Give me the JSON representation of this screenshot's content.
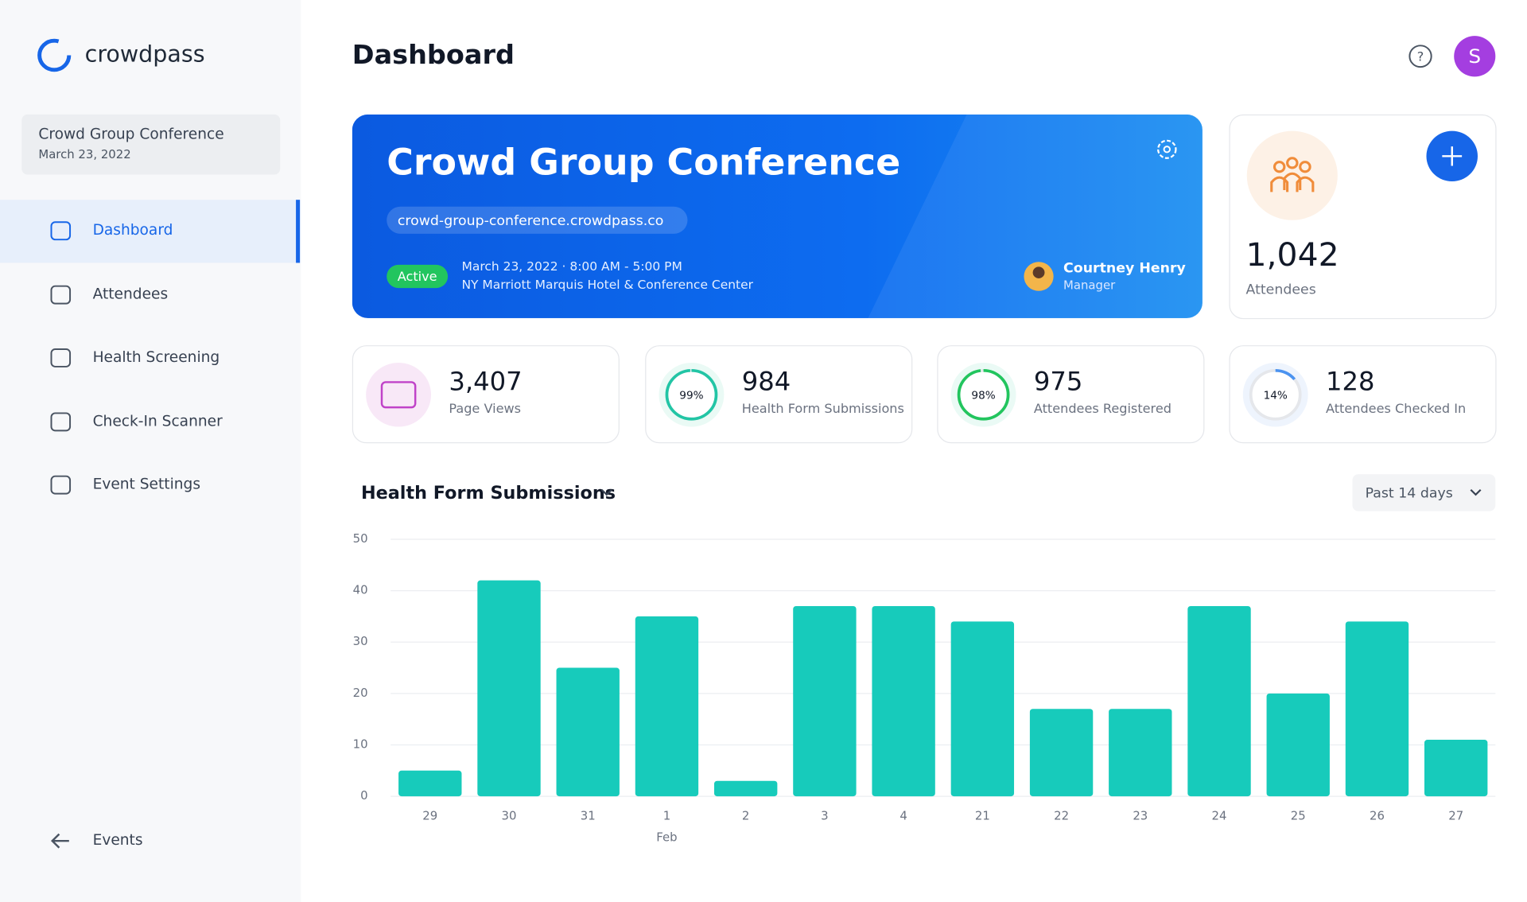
{
  "sidebar": {
    "brand": "crowdpass",
    "event": {
      "name": "Crowd Group Conference",
      "date": "March 23, 2022"
    },
    "nav": [
      "Dashboard",
      "Attendees",
      "Health Screening",
      "Check-In Scanner",
      "Event Settings"
    ],
    "back": "Events"
  },
  "header": {
    "title": "Dashboard",
    "avatar": "S"
  },
  "event_card": {
    "title": "Crowd Group Conference",
    "url": "crowd-group-conference.crowdpass.co",
    "status": "Active",
    "when": "March 23, 2022  ·  8:00 AM - 5:00 PM",
    "venue": "NY Marriott Marquis Hotel & Conference Center",
    "manager": {
      "name": "Courtney Henry",
      "role": "Manager"
    }
  },
  "attendees_card": {
    "value": "1,042",
    "label": "Attendees"
  },
  "stats": [
    {
      "value": "3,407",
      "label": "Page Views"
    },
    {
      "value": "984",
      "label": "Health Form Submissions",
      "percent": 99,
      "percent_label": "99%"
    },
    {
      "value": "975",
      "label": "Attendees Registered",
      "percent": 98,
      "percent_label": "98%"
    },
    {
      "value": "128",
      "label": "Attendees Checked In",
      "percent": 14,
      "percent_label": "14%"
    }
  ],
  "chart_data": {
    "type": "bar",
    "title": "Health Form Submissions",
    "period": "Past 14 days",
    "categories": [
      "29",
      "30",
      "31",
      "1",
      "2",
      "3",
      "4",
      "21",
      "22",
      "23",
      "24",
      "25",
      "26",
      "27"
    ],
    "x_group_label": "Feb",
    "values": [
      5,
      42,
      25,
      35,
      3,
      37,
      37,
      34,
      17,
      17,
      37,
      20,
      34,
      11
    ],
    "color": "#17cbbb",
    "ylim": [
      0,
      50
    ],
    "yticks": [
      0,
      10,
      20,
      30,
      40,
      50
    ],
    "grid": true
  }
}
